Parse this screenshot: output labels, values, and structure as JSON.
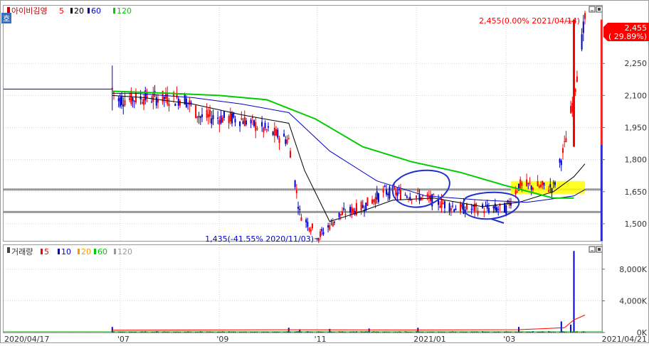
{
  "window": {
    "mode_badge": "호",
    "minimize_icon": "minimize-icon",
    "maximize_icon": "maximize-icon"
  },
  "price_panel": {
    "legend": {
      "title": "아이비김영",
      "items": [
        {
          "label": "5",
          "color": "#ff0000"
        },
        {
          "label": "20",
          "color": "#000000"
        },
        {
          "label": "60",
          "color": "#0000cc"
        },
        {
          "label": "120",
          "color": "#00cc00"
        }
      ]
    },
    "max_annotation": "2,455(0.00% 2021/04/14)",
    "min_annotation": "1,435(-41.55% 2020/11/03)",
    "current_price": "2,455",
    "current_change": "( 29.89%)",
    "y_ticks": [
      "2,250",
      "2,100",
      "1,950",
      "1,800",
      "1,650",
      "1,500"
    ]
  },
  "volume_panel": {
    "legend": {
      "title": "거래량",
      "items": [
        {
          "label": "5",
          "color": "#ff0000"
        },
        {
          "label": "10",
          "color": "#0000cc"
        },
        {
          "label": "20",
          "color": "#ff9900"
        },
        {
          "label": "60",
          "color": "#00cc00"
        },
        {
          "label": "120",
          "color": "#999999"
        }
      ]
    },
    "y_ticks": [
      "8,000K",
      "4,000K",
      "0K"
    ]
  },
  "x_axis": {
    "start_label": "2020/04/17",
    "end_label": "2021/04/21",
    "ticks": [
      "'07",
      "'09",
      "'11",
      "2021/01",
      "'03"
    ]
  },
  "colors": {
    "up": "#ff0000",
    "down": "#0000cc",
    "ma5": "#ff0000",
    "ma20": "#000000",
    "ma60": "#0000cc",
    "ma120": "#00cc00",
    "highlight": "#ffff00",
    "hline": "#999999"
  },
  "chart_data": [
    {
      "type": "line",
      "title": "아이비김영",
      "yticks": [
        1500,
        1650,
        1800,
        1950,
        2100,
        2250
      ],
      "ylim": [
        1420,
        2520
      ],
      "dates": [
        "2020/04/17",
        "2020/06/25",
        "2020/09/01",
        "2020/10/15",
        "2020/11/03",
        "2021/01/01",
        "2021/03/02",
        "2021/04/14",
        "2021/04/21"
      ],
      "series": [
        {
          "name": "5",
          "x": [
            "2020/04/17",
            "2020/06/25",
            "2020/06/29",
            "2020/07/15",
            "2020/08/10",
            "2020/08/20",
            "2020/09/15",
            "2020/10/15",
            "2020/10/22",
            "2020/11/03",
            "2020/11/16",
            "2020/12/01",
            "2020/12/15",
            "2021/01/05",
            "2021/02/01",
            "2021/03/02",
            "2021/03/10",
            "2021/04/01",
            "2021/04/08",
            "2021/04/14",
            "2021/04/21"
          ],
          "values": [
            2130,
            2130,
            2080,
            2090,
            2085,
            2000,
            1990,
            1890,
            1550,
            1440,
            1540,
            1580,
            1650,
            1630,
            1570,
            1570,
            1680,
            1670,
            1860,
            2100,
            2455
          ]
        },
        {
          "name": "20",
          "x": [
            "2020/06/25",
            "2020/07/15",
            "2020/08/15",
            "2020/09/15",
            "2020/10/15",
            "2020/10/25",
            "2020/11/10",
            "2020/12/01",
            "2020/12/20",
            "2021/01/15",
            "2021/02/15",
            "2021/03/10",
            "2021/04/01",
            "2021/04/14",
            "2021/04/21"
          ],
          "values": [
            2100,
            2090,
            2060,
            2010,
            1970,
            1750,
            1510,
            1560,
            1610,
            1620,
            1580,
            1600,
            1650,
            1720,
            1780
          ]
        },
        {
          "name": "60",
          "x": [
            "2020/06/25",
            "2020/07/10",
            "2020/08/15",
            "2020/09/15",
            "2020/10/15",
            "2020/11/10",
            "2020/12/10",
            "2021/01/10",
            "2021/02/15",
            "2021/03/15",
            "2021/04/14",
            "2021/04/21"
          ],
          "values": [
            2110,
            2110,
            2090,
            2060,
            2020,
            1840,
            1700,
            1630,
            1610,
            1600,
            1630,
            1660
          ]
        },
        {
          "name": "120",
          "x": [
            "2020/06/25",
            "2020/08/01",
            "2020/09/01",
            "2020/10/01",
            "2020/11/01",
            "2020/12/01",
            "2021/01/01",
            "2021/02/01",
            "2021/03/01",
            "2021/04/01",
            "2021/04/14"
          ],
          "values": [
            2120,
            2110,
            2100,
            2080,
            1990,
            1860,
            1790,
            1740,
            1680,
            1620,
            1620
          ]
        }
      ],
      "horizontal_lines": [
        1660,
        1555
      ]
    },
    {
      "type": "bar",
      "title": "거래량",
      "yticks_k": [
        0,
        4000,
        8000
      ],
      "ylim_k": [
        0,
        10500
      ],
      "spikes": [
        {
          "date": "2020/06/25",
          "value_k": 700
        },
        {
          "date": "2020/10/15",
          "value_k": 600
        },
        {
          "date": "2020/10/22",
          "value_k": 400
        },
        {
          "date": "2020/11/10",
          "value_k": 450
        },
        {
          "date": "2020/12/05",
          "value_k": 500
        },
        {
          "date": "2021/01/05",
          "value_k": 600
        },
        {
          "date": "2021/03/10",
          "value_k": 700
        },
        {
          "date": "2021/04/06",
          "value_k": 1400
        },
        {
          "date": "2021/04/12",
          "value_k": 1000
        },
        {
          "date": "2021/04/14",
          "value_k": 10300
        }
      ]
    }
  ]
}
